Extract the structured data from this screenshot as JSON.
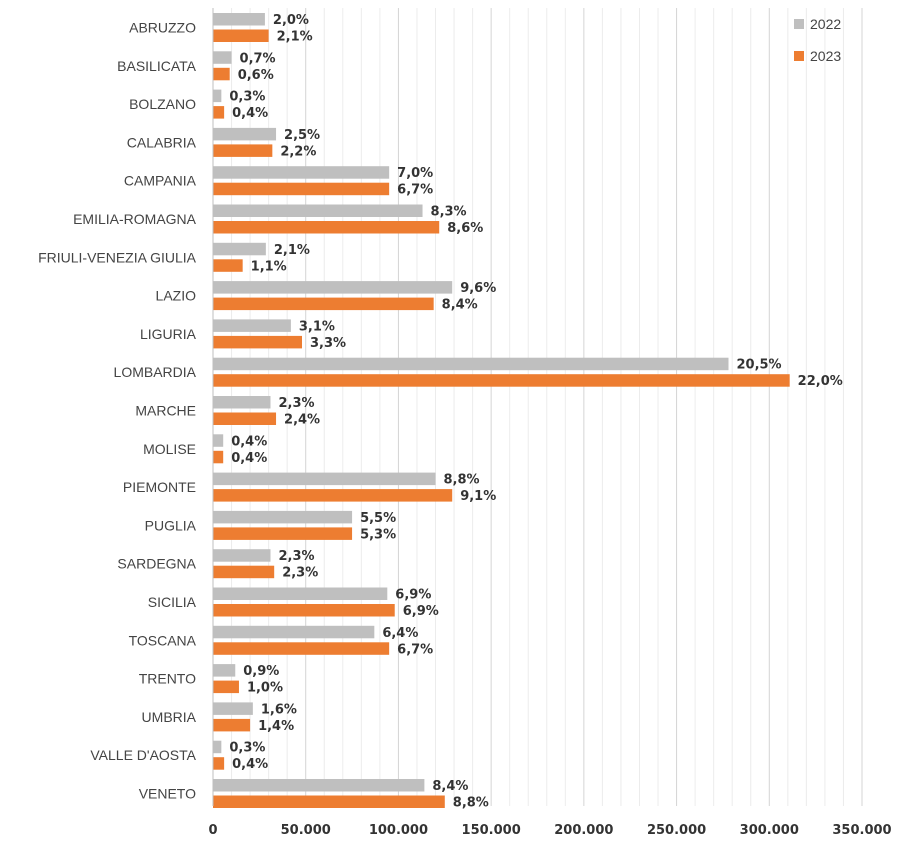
{
  "chart_data": {
    "type": "bar",
    "orientation": "horizontal",
    "categories": [
      "ABRUZZO",
      "BASILICATA",
      "BOLZANO",
      "CALABRIA",
      "CAMPANIA",
      "EMILIA-ROMAGNA",
      "FRIULI-VENEZIA GIULIA",
      "LAZIO",
      "LIGURIA",
      "LOMBARDIA",
      "MARCHE",
      "MOLISE",
      "PIEMONTE",
      "PUGLIA",
      "SARDEGNA",
      "SICILIA",
      "TOSCANA",
      "TRENTO",
      "UMBRIA",
      "VALLE D'AOSTA",
      "VENETO"
    ],
    "series": [
      {
        "name": "2022",
        "color": "#bfbfbf",
        "values": [
          28000,
          10000,
          4500,
          34000,
          95000,
          113000,
          28500,
          129000,
          42000,
          278000,
          31000,
          5500,
          120000,
          75000,
          31000,
          94000,
          87000,
          12000,
          21500,
          4500,
          114000
        ],
        "labels": [
          "2,0%",
          "0,7%",
          "0,3%",
          "2,5%",
          "7,0%",
          "8,3%",
          "2,1%",
          "9,6%",
          "3,1%",
          "20,5%",
          "2,3%",
          "0,4%",
          "8,8%",
          "5,5%",
          "2,3%",
          "6,9%",
          "6,4%",
          "0,9%",
          "1,6%",
          "0,3%",
          "8,4%"
        ]
      },
      {
        "name": "2023",
        "color": "#ed7d31",
        "values": [
          30000,
          9000,
          6000,
          32000,
          95000,
          122000,
          16000,
          119000,
          48000,
          311000,
          34000,
          5500,
          129000,
          75000,
          33000,
          98000,
          95000,
          14000,
          20000,
          6000,
          125000
        ],
        "labels": [
          "2,1%",
          "0,6%",
          "0,4%",
          "2,2%",
          "6,7%",
          "8,6%",
          "1,1%",
          "8,4%",
          "3,3%",
          "22,0%",
          "2,4%",
          "0,4%",
          "9,1%",
          "5,3%",
          "2,3%",
          "6,9%",
          "6,7%",
          "1,0%",
          "1,4%",
          "0,4%",
          "8,8%"
        ]
      }
    ],
    "x_ticks": [
      0,
      50000,
      100000,
      150000,
      200000,
      250000,
      300000,
      350000
    ],
    "x_tick_labels": [
      "0",
      "50.000",
      "100.000",
      "150.000",
      "200.000",
      "250.000",
      "300.000",
      "350.000"
    ],
    "xlim": [
      0,
      350000
    ],
    "grid": true,
    "legend_position": "top-right",
    "title": "",
    "xlabel": "",
    "ylabel": ""
  }
}
